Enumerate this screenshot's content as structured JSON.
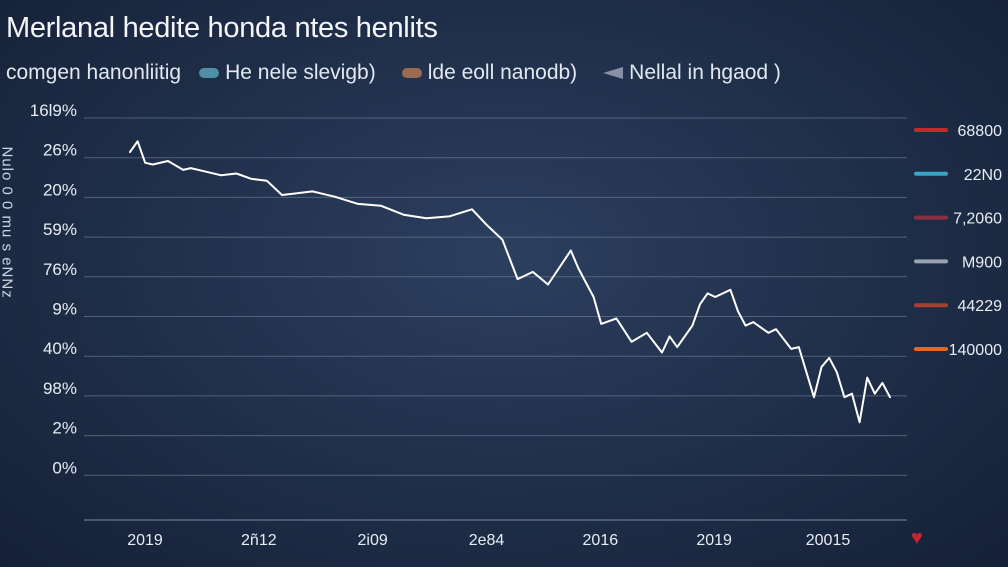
{
  "chart_data": {
    "type": "line",
    "title": "Merlanal hedite honda ntes henlits",
    "subtitle": "comgen hanonliitig",
    "legend": [
      {
        "label": "He nele slevigb)",
        "color": "#4e8fa6",
        "shape": "pill"
      },
      {
        "label": "lde eoll nanodb)",
        "color": "#9a6a52",
        "shape": "pill"
      },
      {
        "label": "Nellal in hgaod )",
        "color": "#8a8fa8",
        "shape": "triangle"
      }
    ],
    "legend_placement": "top-left",
    "ylabel": "Nulo 0 0 mu s eNNz",
    "yticks": [
      "16l9%",
      "26%",
      "20%",
      "59%",
      "76%",
      "9%",
      "40%",
      "98%",
      "2%",
      "0%"
    ],
    "xticks": [
      "2019",
      "2ñ12",
      "2i09",
      "2e84",
      "2016",
      "2019",
      "20015"
    ],
    "grid": true,
    "right_labels": [
      {
        "text": "68800",
        "color": "#c62828"
      },
      {
        "text": "22N0",
        "color": "#3aa5c4"
      },
      {
        "text": "7,2060",
        "color": "#8b3040"
      },
      {
        "text": "M900",
        "color": "#9aa3b2"
      },
      {
        "text": "44229",
        "color": "#a8402f"
      },
      {
        "text": "140000",
        "color": "#e0692e"
      }
    ],
    "series": [
      {
        "color": "#ffffff",
        "x": [
          0.0,
          0.01,
          0.02,
          0.03,
          0.05,
          0.07,
          0.08,
          0.1,
          0.12,
          0.14,
          0.16,
          0.18,
          0.2,
          0.22,
          0.24,
          0.25,
          0.27,
          0.3,
          0.33,
          0.36,
          0.39,
          0.42,
          0.45,
          0.47,
          0.49,
          0.51,
          0.53,
          0.55,
          0.58,
          0.59,
          0.61,
          0.62,
          0.64,
          0.66,
          0.68,
          0.7,
          0.71,
          0.72,
          0.74,
          0.75,
          0.76,
          0.77,
          0.79,
          0.8,
          0.81,
          0.82,
          0.84,
          0.85,
          0.87,
          0.88,
          0.9,
          0.91,
          0.92,
          0.93,
          0.94,
          0.95,
          0.96,
          0.97,
          0.98,
          0.99,
          1.0
        ],
        "y": [
          90.5,
          93.5,
          87.5,
          87.0,
          88.0,
          85.5,
          86.0,
          85.0,
          84.0,
          84.5,
          83.0,
          82.5,
          78.5,
          79.0,
          79.5,
          79.0,
          78.0,
          76.0,
          75.5,
          73.0,
          72.0,
          72.5,
          74.5,
          70.0,
          66.0,
          55.0,
          57.0,
          53.5,
          63.0,
          58.0,
          50.0,
          42.5,
          44.0,
          37.5,
          40.0,
          34.5,
          39.0,
          36.0,
          42.0,
          48.0,
          51.0,
          50.0,
          52.0,
          46.0,
          42.0,
          43.0,
          40.0,
          41.0,
          35.5,
          36.0,
          22.0,
          30.5,
          33.0,
          29.0,
          22.0,
          23.0,
          15.0,
          27.5,
          23.0,
          26.0,
          22.0
        ]
      }
    ]
  }
}
